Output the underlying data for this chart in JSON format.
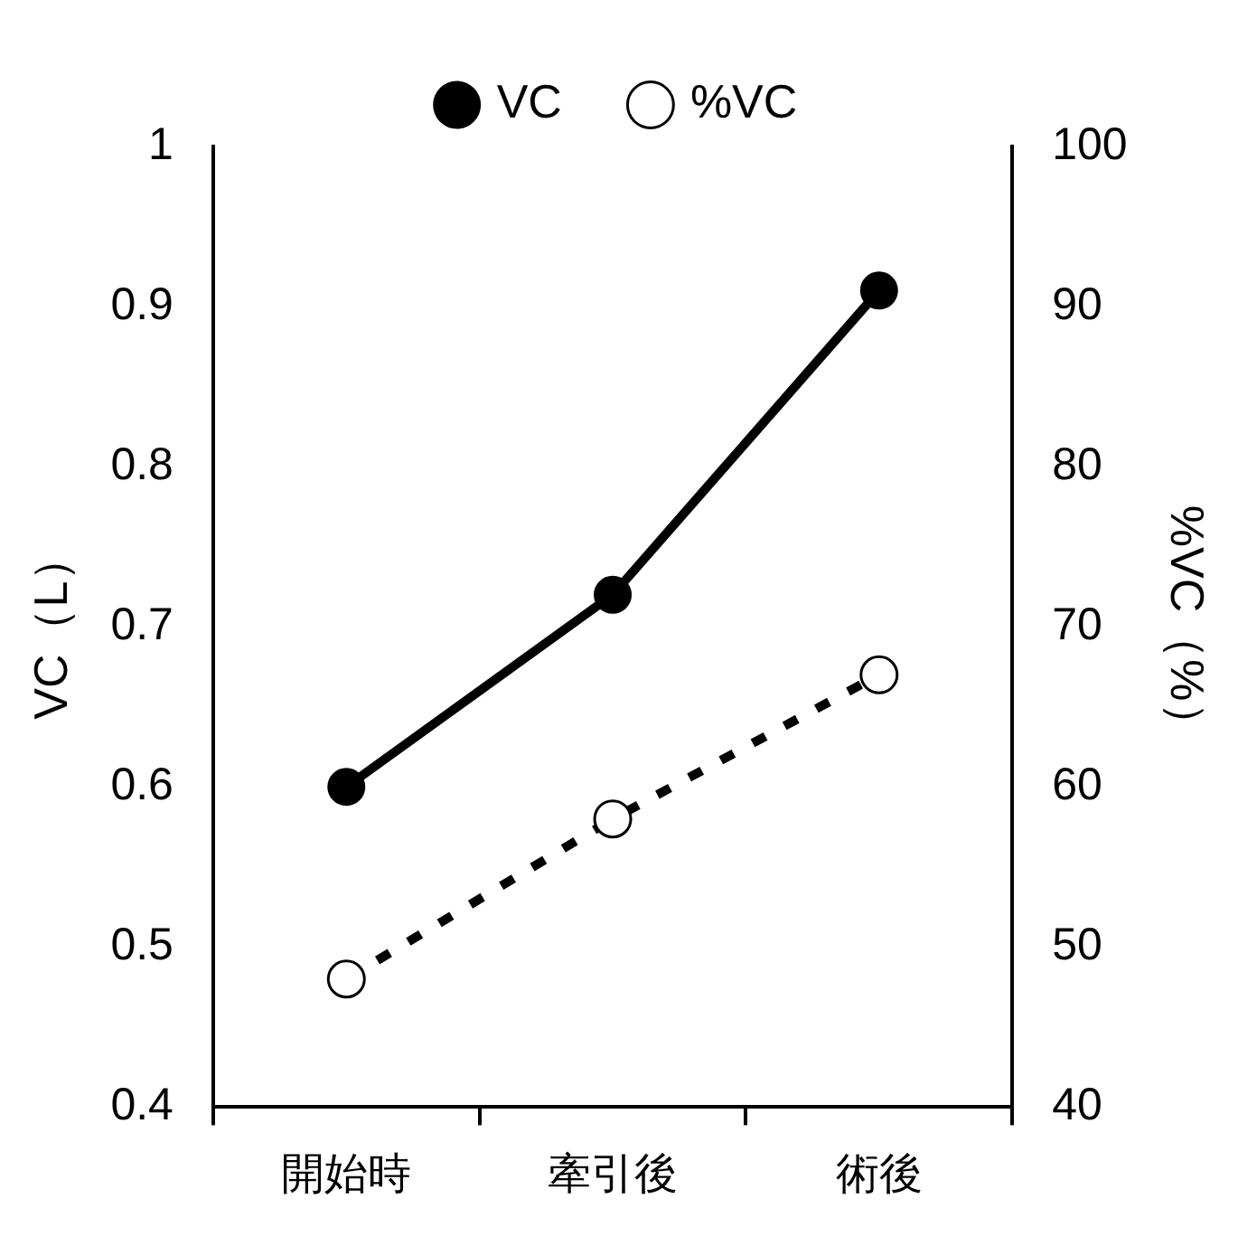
{
  "chart_data": {
    "type": "line",
    "categories": [
      "開始時",
      "牽引後",
      "術後"
    ],
    "series": [
      {
        "name": "VC",
        "color": "#000000",
        "values": [
          0.6,
          0.72,
          0.91
        ],
        "line_style": "solid",
        "marker": "circle"
      },
      {
        "name": "%VC",
        "color": "#000000",
        "values": [
          48,
          58,
          67
        ],
        "axis": "y2",
        "line_style": "dashed",
        "marker": "circle"
      }
    ],
    "ylabel": "VC（L）",
    "y2label": "%VC（%）",
    "ylim": [
      0.4,
      1
    ],
    "yticks": [
      0.4,
      0.5,
      0.6,
      0.7,
      0.8,
      0.9,
      1
    ],
    "y2lim": [
      40,
      100
    ],
    "y2ticks": [
      40,
      50,
      60,
      70,
      80,
      90,
      100
    ],
    "legend": "top",
    "grid": false
  }
}
